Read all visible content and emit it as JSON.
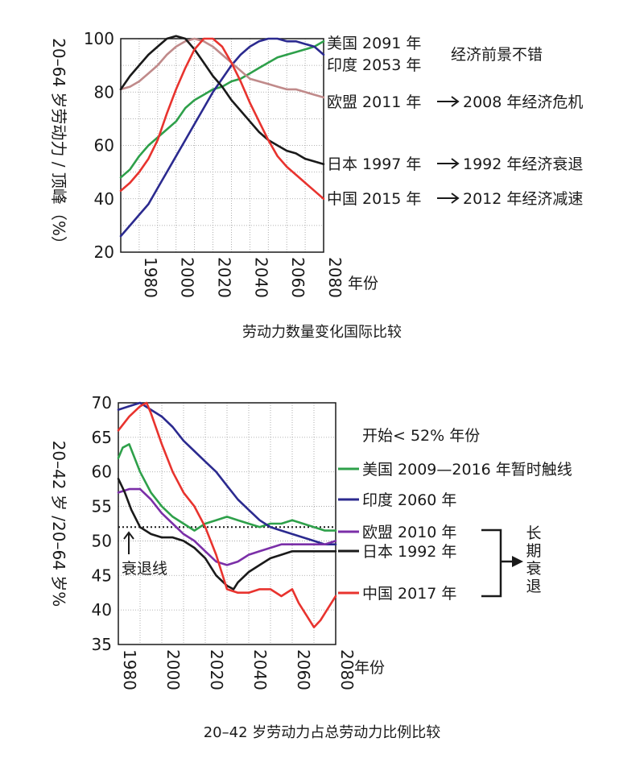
{
  "chart_data": [
    {
      "type": "line",
      "title": "劳动力数量变化国际比较",
      "ylabel": "20–64 岁劳动力 / 顶峰（%）",
      "xlabel": "年份",
      "xlim": [
        1970,
        2080
      ],
      "ylim": [
        20,
        100
      ],
      "xticks": [
        1980,
        2000,
        2020,
        2040,
        2060,
        2080
      ],
      "yticks": [
        20,
        40,
        60,
        80,
        100
      ],
      "grid": true,
      "side_note": "经济前景不错",
      "series": [
        {
          "key": "us",
          "name": "美国 2091 年",
          "color": "#2ea04a",
          "x": [
            1970,
            1975,
            1980,
            1985,
            1990,
            1995,
            2000,
            2005,
            2010,
            2015,
            2020,
            2025,
            2030,
            2035,
            2040,
            2045,
            2050,
            2055,
            2060,
            2065,
            2070,
            2075,
            2080
          ],
          "y": [
            48,
            51,
            56,
            60,
            63,
            66,
            69,
            74,
            77,
            79,
            81,
            82,
            84,
            85,
            87,
            89,
            91,
            93,
            94,
            95,
            96,
            97,
            99
          ]
        },
        {
          "key": "india",
          "name": "印度 2053 年",
          "color": "#2b2a8f",
          "x": [
            1970,
            1975,
            1980,
            1985,
            1990,
            1995,
            2000,
            2005,
            2010,
            2015,
            2020,
            2025,
            2030,
            2035,
            2040,
            2045,
            2050,
            2055,
            2060,
            2065,
            2070,
            2075,
            2080
          ],
          "y": [
            26,
            30,
            34,
            38,
            44,
            50,
            56,
            62,
            68,
            74,
            80,
            85,
            90,
            94,
            97,
            99,
            100,
            100,
            99,
            99,
            98,
            97,
            94
          ]
        },
        {
          "key": "eu",
          "name": "欧盟 2011 年",
          "label_suffix": "2008 年经济危机",
          "color": "#c08a8a",
          "x": [
            1970,
            1975,
            1980,
            1985,
            1990,
            1995,
            2000,
            2005,
            2010,
            2015,
            2020,
            2025,
            2030,
            2035,
            2040,
            2045,
            2050,
            2055,
            2060,
            2065,
            2070,
            2075,
            2080
          ],
          "y": [
            81,
            82,
            84,
            87,
            90,
            94,
            97,
            99,
            100,
            99,
            97,
            94,
            91,
            88,
            85,
            84,
            83,
            82,
            81,
            81,
            80,
            79,
            78
          ]
        },
        {
          "key": "japan",
          "name": "日本 1997 年",
          "label_suffix": "1992 年经济衰退",
          "color": "#1a1a1a",
          "x": [
            1970,
            1975,
            1980,
            1985,
            1990,
            1995,
            2000,
            2005,
            2010,
            2015,
            2020,
            2025,
            2030,
            2035,
            2040,
            2045,
            2050,
            2055,
            2060,
            2065,
            2070,
            2075,
            2080
          ],
          "y": [
            81,
            86,
            90,
            94,
            97,
            100,
            101,
            100,
            96,
            91,
            86,
            82,
            77,
            73,
            69,
            65,
            62,
            60,
            58,
            57,
            55,
            54,
            53
          ]
        },
        {
          "key": "china",
          "name": "中国 2015 年",
          "label_suffix": "2012 年经济减速",
          "color": "#e8332e",
          "x": [
            1970,
            1975,
            1980,
            1985,
            1990,
            1995,
            2000,
            2005,
            2010,
            2015,
            2020,
            2025,
            2030,
            2035,
            2040,
            2045,
            2050,
            2055,
            2060,
            2065,
            2070,
            2075,
            2080
          ],
          "y": [
            43,
            46,
            50,
            55,
            62,
            72,
            81,
            89,
            96,
            100,
            100,
            97,
            91,
            84,
            76,
            69,
            62,
            56,
            52,
            49,
            46,
            43,
            40
          ]
        }
      ]
    },
    {
      "type": "line",
      "title": "20–42 岁劳动力占总劳动力比例比较",
      "ylabel": "20–42 岁 /20–64 岁%",
      "xlabel": "年份",
      "xlim": [
        1980,
        2080
      ],
      "ylim": [
        35,
        70
      ],
      "xticks": [
        1980,
        2000,
        2020,
        2040,
        2060,
        2080
      ],
      "yticks": [
        35,
        40,
        45,
        50,
        55,
        60,
        65,
        70
      ],
      "grid": true,
      "legend_title": "开始< 52% 年份",
      "recession_line": {
        "value": 52,
        "label": "衰退线"
      },
      "bracket_label": "长期衰退",
      "series": [
        {
          "key": "us",
          "name": "美国 2009—2016 年暂时触线",
          "color": "#2ea04a",
          "x": [
            1980,
            1982,
            1985,
            1990,
            1995,
            2000,
            2005,
            2010,
            2015,
            2020,
            2025,
            2030,
            2035,
            2040,
            2045,
            2050,
            2055,
            2060,
            2065,
            2070,
            2075,
            2080
          ],
          "y": [
            62,
            63.5,
            64,
            60,
            57,
            55,
            53.5,
            52.5,
            51.5,
            52.5,
            53,
            53.5,
            53,
            52.5,
            52,
            52.5,
            52.5,
            53,
            52.5,
            52,
            51.5,
            51.5
          ]
        },
        {
          "key": "india",
          "name": "印度 2060 年",
          "color": "#2b2a8f",
          "x": [
            1980,
            1985,
            1990,
            1995,
            2000,
            2005,
            2010,
            2015,
            2020,
            2025,
            2030,
            2035,
            2040,
            2045,
            2050,
            2055,
            2060,
            2065,
            2070,
            2075,
            2080
          ],
          "y": [
            69,
            69.5,
            70,
            69,
            68,
            66.5,
            64.5,
            63,
            61.5,
            60,
            58,
            56,
            54.5,
            53,
            52,
            51.5,
            51,
            50.5,
            50,
            49.5,
            49.5
          ]
        },
        {
          "key": "eu",
          "name": "欧盟 2010 年",
          "color": "#7b2fa8",
          "x": [
            1980,
            1985,
            1990,
            1995,
            2000,
            2005,
            2010,
            2015,
            2020,
            2025,
            2030,
            2035,
            2040,
            2045,
            2050,
            2055,
            2060,
            2065,
            2070,
            2075,
            2080
          ],
          "y": [
            57,
            57.5,
            57.5,
            56,
            54,
            52.5,
            51,
            50,
            48.5,
            47,
            46.5,
            47,
            48,
            48.5,
            49,
            49.5,
            49.5,
            49.5,
            49.5,
            49.5,
            50
          ]
        },
        {
          "key": "japan",
          "name": "日本 1992 年",
          "color": "#1a1a1a",
          "x": [
            1980,
            1983,
            1986,
            1990,
            1995,
            2000,
            2005,
            2010,
            2015,
            2020,
            2025,
            2030,
            2033,
            2035,
            2040,
            2045,
            2050,
            2055,
            2060,
            2065,
            2070,
            2075,
            2080
          ],
          "y": [
            59,
            57,
            54.5,
            52,
            51,
            50.5,
            50.5,
            50,
            49,
            47.5,
            45,
            43.5,
            43,
            44,
            45.5,
            46.5,
            47.5,
            48,
            48.5,
            48.5,
            48.5,
            48.5,
            48.5
          ]
        },
        {
          "key": "china",
          "name": "中国 2017 年",
          "color": "#e8332e",
          "x": [
            1980,
            1985,
            1990,
            1993,
            1995,
            2000,
            2005,
            2010,
            2015,
            2020,
            2025,
            2030,
            2035,
            2040,
            2045,
            2050,
            2055,
            2060,
            2063,
            2066,
            2070,
            2073,
            2076,
            2080
          ],
          "y": [
            66,
            68,
            69.5,
            70,
            68.5,
            64,
            60,
            57,
            55,
            52,
            48,
            43,
            42.5,
            42.5,
            43,
            43,
            42,
            43,
            41,
            39.5,
            37.5,
            38.5,
            40,
            42
          ]
        }
      ]
    }
  ]
}
